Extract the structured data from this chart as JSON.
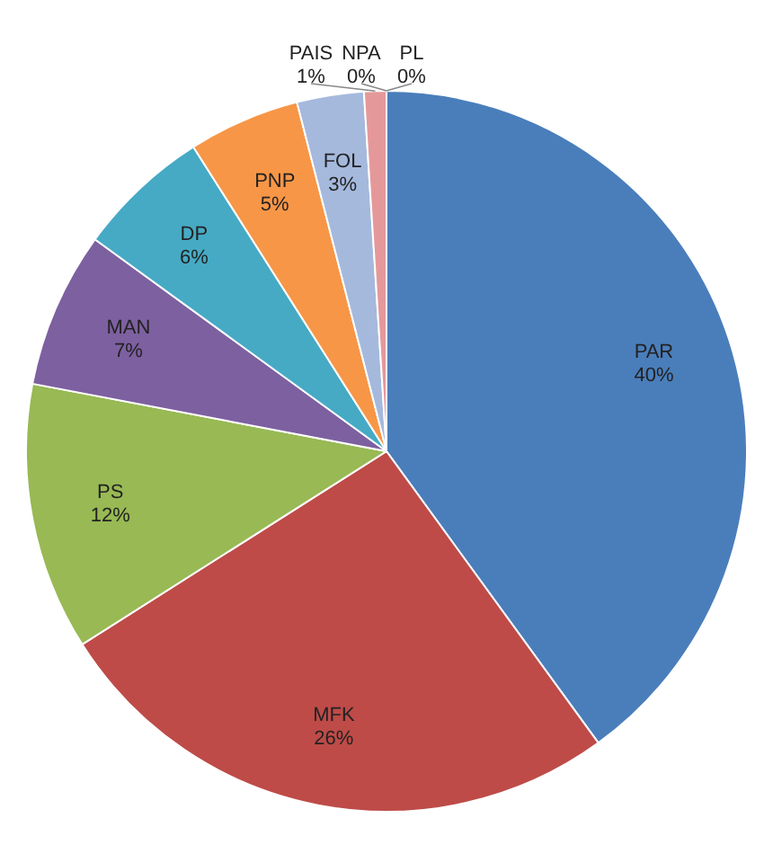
{
  "chart_data": {
    "type": "pie",
    "categories": [
      "PAR",
      "MFK",
      "PS",
      "MAN",
      "DP",
      "PNP",
      "FOL",
      "PAIS",
      "NPA",
      "PL"
    ],
    "values": [
      40,
      26,
      12,
      7,
      6,
      5,
      3,
      1,
      0,
      0
    ],
    "value_labels": [
      "40%",
      "26%",
      "12%",
      "7%",
      "6%",
      "5%",
      "3%",
      "1%",
      "0%",
      "0%"
    ],
    "colors": [
      "#4a7ebb",
      "#be4b48",
      "#98b954",
      "#7d60a0",
      "#46aac5",
      "#f79646",
      "#a5b9dd",
      "#e5989a",
      "#c3d69b",
      "#9bbb59"
    ],
    "legend": false
  }
}
